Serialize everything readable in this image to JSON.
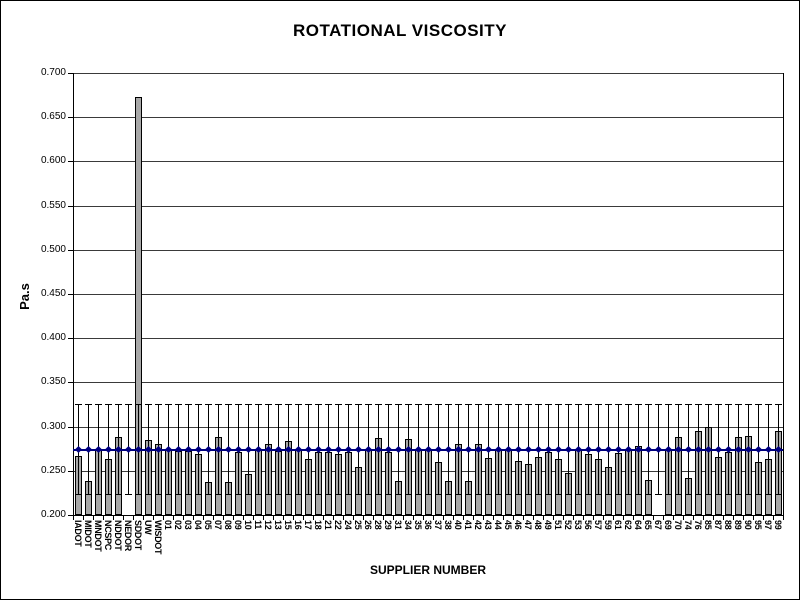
{
  "chart_data": {
    "type": "bar",
    "title": "ROTATIONAL VISCOSITY",
    "xlabel": "SUPPLIER NUMBER",
    "ylabel": "Pa.s",
    "ylim": [
      0.2,
      0.7
    ],
    "ytick_step": 0.05,
    "ytick_labels": [
      "0.200",
      "0.250",
      "0.300",
      "0.350",
      "0.400",
      "0.450",
      "0.500",
      "0.550",
      "0.600",
      "0.650",
      "0.700"
    ],
    "grid": "horizontal",
    "legend": "none",
    "categories": [
      "IADOT",
      "MIDOT",
      "MNDOT",
      "NCSPC",
      "NDDOT",
      "NEDOR",
      "SDDOT",
      "UW",
      "WISDOT",
      "01",
      "02",
      "03",
      "04",
      "05",
      "07",
      "08",
      "09",
      "10",
      "11",
      "12",
      "13",
      "15",
      "16",
      "17",
      "18",
      "21",
      "22",
      "24",
      "25",
      "26",
      "28",
      "29",
      "31",
      "34",
      "35",
      "36",
      "37",
      "38",
      "40",
      "41",
      "42",
      "43",
      "44",
      "45",
      "46",
      "47",
      "48",
      "49",
      "51",
      "52",
      "53",
      "56",
      "57",
      "59",
      "61",
      "62",
      "64",
      "65",
      "67",
      "69",
      "70",
      "74",
      "76",
      "85",
      "87",
      "88",
      "89",
      "90",
      "95",
      "97",
      "99"
    ],
    "values": [
      0.267,
      0.239,
      0.274,
      0.263,
      0.288,
      null,
      0.673,
      0.285,
      0.28,
      0.274,
      0.272,
      0.272,
      0.269,
      0.237,
      0.288,
      0.237,
      0.271,
      0.246,
      0.274,
      0.28,
      0.272,
      0.284,
      0.273,
      0.263,
      0.271,
      0.271,
      0.269,
      0.271,
      0.254,
      0.273,
      0.287,
      0.271,
      0.238,
      0.286,
      0.273,
      0.273,
      0.26,
      0.238,
      0.28,
      0.238,
      0.28,
      0.264,
      0.274,
      0.274,
      0.261,
      0.258,
      0.266,
      0.271,
      0.263,
      0.247,
      0.274,
      0.269,
      0.263,
      0.254,
      0.27,
      0.274,
      0.278,
      0.24,
      null,
      0.273,
      0.288,
      0.242,
      0.295,
      0.3,
      0.266,
      0.271,
      0.288,
      0.289,
      0.26,
      0.263,
      0.295
    ],
    "mean_line": 0.274,
    "error_bar": {
      "low": 0.224,
      "high": 0.326
    }
  },
  "colors": {
    "bar_fill": "#a8a8a8",
    "bar_border": "#000000",
    "mean_line": "#000080",
    "gridline": "#3a3a3a",
    "background": "#ffffff"
  }
}
